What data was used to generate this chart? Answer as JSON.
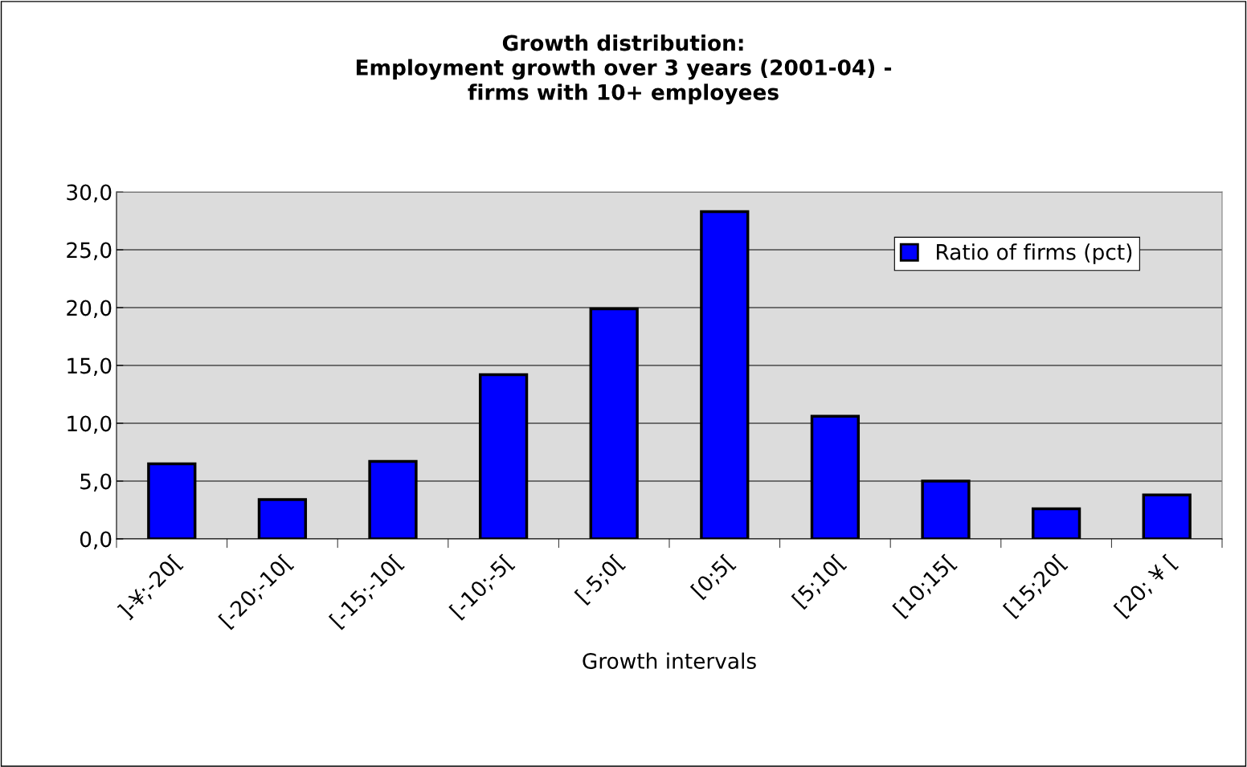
{
  "chart_data": {
    "type": "bar",
    "title": "Growth distribution:\nEmployment growth over 3 years (2001-04) -\nfirms with 10+ employees",
    "xlabel": "Growth intervals",
    "categories": [
      "]-¥;-20[",
      "[-20;-10[",
      "[-15;-10[",
      "[-10;-5[",
      "[-5;0[",
      "[0;5[",
      "[5;10[",
      "[10;15[",
      "[15;20[",
      "[20; ¥ ["
    ],
    "series": [
      {
        "name": "Ratio of firms (pct)",
        "color": "#0000ff",
        "values": [
          6.5,
          3.4,
          6.7,
          14.2,
          19.9,
          28.3,
          10.6,
          5.0,
          2.6,
          3.8
        ]
      }
    ],
    "ylim": [
      0,
      30
    ],
    "yticks": [
      {
        "value": 0,
        "label": "0,0"
      },
      {
        "value": 5,
        "label": "5,0"
      },
      {
        "value": 10,
        "label": "10,0"
      },
      {
        "value": 15,
        "label": "15,0"
      },
      {
        "value": 20,
        "label": "20,0"
      },
      {
        "value": 25,
        "label": "25,0"
      },
      {
        "value": 30,
        "label": "30,0"
      }
    ],
    "grid": "y",
    "legend": "top right"
  }
}
